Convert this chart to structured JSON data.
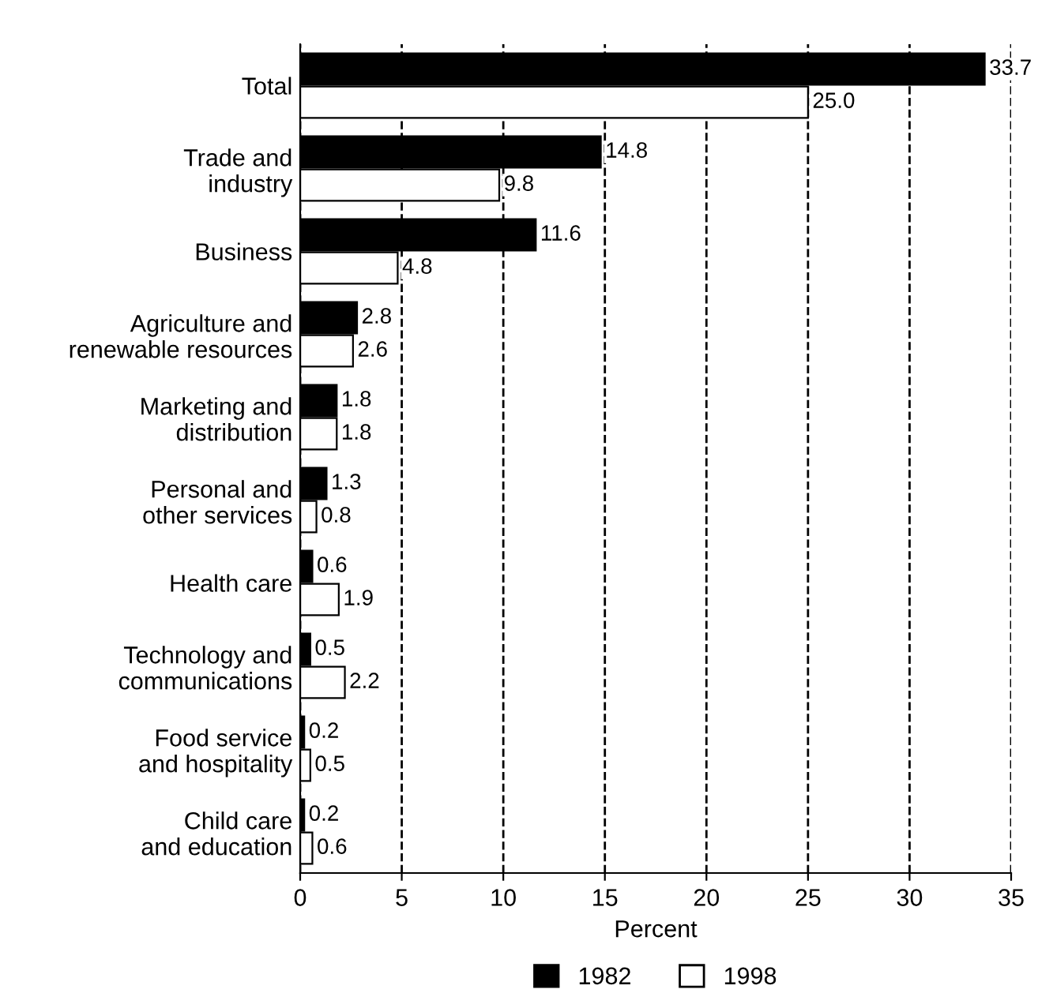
{
  "chart_data": {
    "type": "bar",
    "orientation": "horizontal",
    "xlabel": "Percent",
    "categories": [
      "Total",
      "Trade and\nindustry",
      "Business",
      "Agriculture and\nrenewable resources",
      "Marketing and\ndistribution",
      "Personal and\nother services",
      "Health care",
      "Technology and\ncommunications",
      "Food service\nand hospitality",
      "Child care\nand education"
    ],
    "series": [
      {
        "name": "1982",
        "color": "#000000",
        "values": [
          33.7,
          14.8,
          11.6,
          2.8,
          1.8,
          1.3,
          0.6,
          0.5,
          0.2,
          0.2
        ],
        "value_labels": [
          "33.7",
          "14.8",
          "11.6",
          "2.8",
          "1.8",
          "1.3",
          "0.6",
          "0.5",
          "0.2",
          "0.2"
        ]
      },
      {
        "name": "1998",
        "color": "#ffffff",
        "values": [
          25.0,
          9.8,
          4.8,
          2.6,
          1.8,
          0.8,
          1.9,
          2.2,
          0.5,
          0.6
        ],
        "value_labels": [
          "25.0",
          "9.8",
          "4.8",
          "2.6",
          "1.8",
          "0.8",
          "1.9",
          "2.2",
          "0.5",
          "0.6"
        ]
      }
    ],
    "xlim": [
      0,
      35
    ],
    "xticks": [
      0,
      5,
      10,
      15,
      20,
      25,
      30,
      35
    ],
    "grid": "x",
    "line_style": "dashed",
    "legend": "bottom"
  }
}
